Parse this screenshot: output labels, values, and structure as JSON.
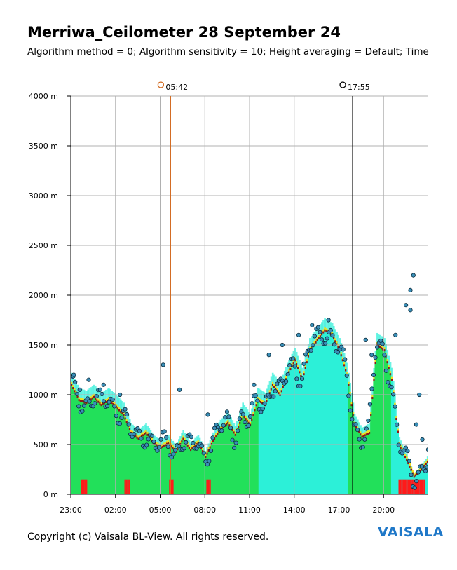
{
  "title": "Merriwa_Ceilometer 28 September 24",
  "subtitle": "Algorithm method = 0; Algorithm sensitivity = 10; Height averaging = Default; Time",
  "copyright": "Copyright (c) Vaisala BL-View. All rights reserved.",
  "logo_text": "VAISALA",
  "chart_data": {
    "type": "scatter",
    "title": "Merriwa_Ceilometer 28 September 24",
    "x_unit": "hours after 23:00",
    "xlim": [
      0,
      24
    ],
    "ylim": [
      0,
      4000
    ],
    "y_ticks": [
      0,
      500,
      1000,
      1500,
      2000,
      2500,
      3000,
      3500,
      4000
    ],
    "y_tick_labels": [
      "0 m",
      "500 m",
      "1000 m",
      "1500 m",
      "2000 m",
      "2500 m",
      "3000 m",
      "3500 m",
      "4000 m"
    ],
    "x_ticks": [
      0,
      3,
      6,
      9,
      12,
      15,
      18,
      21
    ],
    "x_tick_labels": [
      "23:00",
      "02:00",
      "05:00",
      "08:00",
      "11:00",
      "14:00",
      "17:00",
      "20:00"
    ],
    "grid": true,
    "sunrise": {
      "label": "05:42",
      "x": 6.7,
      "color": "#d2691e"
    },
    "sunset": {
      "label": "17:55",
      "x": 18.92,
      "color": "#000000"
    },
    "colors": {
      "backscatter_green": "#22e05a",
      "backscatter_cyan": "#2cf0d8",
      "yellow": "#f0e020",
      "red": "#ff1a1a",
      "maroon": "#8b1a1a",
      "gray": "#a0a0a0",
      "cloud_point": "#3a8fb8"
    },
    "mixing_layer_height_m": [
      [
        0.0,
        1100
      ],
      [
        0.5,
        950
      ],
      [
        1.0,
        920
      ],
      [
        1.5,
        980
      ],
      [
        2.0,
        900
      ],
      [
        2.5,
        950
      ],
      [
        3.0,
        880
      ],
      [
        3.5,
        800
      ],
      [
        4.0,
        620
      ],
      [
        4.5,
        560
      ],
      [
        5.0,
        620
      ],
      [
        5.5,
        520
      ],
      [
        6.0,
        470
      ],
      [
        6.5,
        520
      ],
      [
        7.0,
        430
      ],
      [
        7.5,
        560
      ],
      [
        8.0,
        450
      ],
      [
        8.5,
        520
      ],
      [
        9.0,
        380
      ],
      [
        9.5,
        540
      ],
      [
        10.0,
        650
      ],
      [
        10.5,
        720
      ],
      [
        11.0,
        600
      ],
      [
        11.5,
        800
      ],
      [
        12.0,
        700
      ],
      [
        12.5,
        950
      ],
      [
        13.0,
        900
      ],
      [
        13.5,
        1100
      ],
      [
        14.0,
        1000
      ],
      [
        14.5,
        1200
      ],
      [
        15.0,
        1350
      ],
      [
        15.5,
        1150
      ],
      [
        16.0,
        1450
      ],
      [
        16.5,
        1550
      ],
      [
        17.0,
        1650
      ],
      [
        17.5,
        1600
      ],
      [
        18.0,
        1450
      ],
      [
        18.5,
        1200
      ],
      [
        19.0,
        700
      ],
      [
        19.5,
        580
      ],
      [
        20.0,
        620
      ],
      [
        20.5,
        1500
      ],
      [
        21.0,
        1450
      ],
      [
        21.5,
        1150
      ],
      [
        22.0,
        500
      ],
      [
        22.5,
        350
      ],
      [
        23.0,
        180
      ],
      [
        23.5,
        250
      ],
      [
        24.0,
        350
      ]
    ],
    "residual_layer_points_m": [
      [
        0.2,
        1200
      ],
      [
        0.6,
        1050
      ],
      [
        1.2,
        1150
      ],
      [
        2.2,
        1100
      ],
      [
        3.3,
        1000
      ],
      [
        6.2,
        1300
      ],
      [
        7.3,
        1050
      ],
      [
        9.2,
        800
      ],
      [
        12.3,
        1100
      ],
      [
        13.3,
        1400
      ],
      [
        14.2,
        1500
      ],
      [
        15.3,
        1600
      ],
      [
        16.2,
        1700
      ],
      [
        17.3,
        1750
      ],
      [
        19.8,
        1550
      ],
      [
        20.2,
        1400
      ],
      [
        22.5,
        1900
      ],
      [
        22.8,
        1850
      ],
      [
        21.8,
        1600
      ],
      [
        23.2,
        700
      ],
      [
        23.6,
        550
      ],
      [
        24.0,
        450
      ]
    ],
    "sky_condition_m": [
      [
        22.8,
        2050
      ],
      [
        23.0,
        2200
      ],
      [
        23.4,
        1000
      ]
    ]
  }
}
